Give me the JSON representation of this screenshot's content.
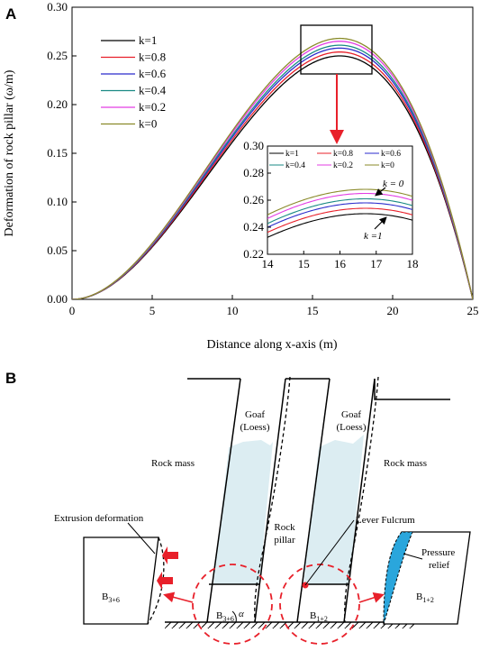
{
  "panels": {
    "a": "A",
    "b": "B"
  },
  "colors": {
    "k1": "#000000",
    "k08": "#e8202a",
    "k06": "#2b2bcc",
    "k04": "#1a8a84",
    "k02": "#e33de3",
    "k0": "#8a8a2a",
    "arrow": "#e8202a",
    "goaf": "#dcedf2",
    "relief": "#2aa6dc"
  },
  "chart_data": {
    "type": "line",
    "title": "",
    "xlabel": "Distance along x-axis (m)",
    "ylabel": "Deformation of rock pillar (ω/m)",
    "xlim": [
      0,
      25
    ],
    "ylim": [
      0,
      0.3
    ],
    "xticks": [
      "0",
      "5",
      "10",
      "15",
      "20",
      "25"
    ],
    "yticks": [
      "0.00",
      "0.05",
      "0.10",
      "0.15",
      "0.20",
      "0.25",
      "0.30"
    ],
    "series": [
      {
        "name": "k=1",
        "peak": 0.25,
        "peak_x": 16.7
      },
      {
        "name": "k=0.8",
        "peak": 0.254,
        "peak_x": 16.7
      },
      {
        "name": "k=0.6",
        "peak": 0.258,
        "peak_x": 16.7
      },
      {
        "name": "k=0.4",
        "peak": 0.261,
        "peak_x": 16.7
      },
      {
        "name": "k=0.2",
        "peak": 0.265,
        "peak_x": 16.7
      },
      {
        "name": "k=0",
        "peak": 0.268,
        "peak_x": 16.7
      }
    ],
    "legend_position": "top-left",
    "inset": {
      "xlim": [
        14,
        18
      ],
      "ylim": [
        0.22,
        0.3
      ],
      "xticks": [
        "14",
        "15",
        "16",
        "17",
        "18"
      ],
      "yticks": [
        "0.22",
        "0.24",
        "0.26",
        "0.28",
        "0.30"
      ],
      "legend": [
        "k=1",
        "k=0.8",
        "k=0.6",
        "k=0.4",
        "k=0.2",
        "k=0"
      ],
      "annotation_top": "k = 0",
      "annotation_bottom": "k =1"
    }
  },
  "diagram": {
    "goaf_left": "Goaf",
    "goaf_left_sub": "(Loess)",
    "goaf_right": "Goaf",
    "goaf_right_sub": "(Loess)",
    "rock_mass_left": "Rock mass",
    "rock_mass_right": "Rock mass",
    "rock_pillar_1": "Rock",
    "rock_pillar_2": "pillar",
    "extrusion": "Extrusion deformation",
    "lever": "Lever Fulcrum",
    "pressure_1": "Pressure",
    "pressure_2": "relief",
    "angle": "α",
    "b36": "B",
    "b36_sub": "3+6",
    "b12": "B",
    "b12_sub": "1+2"
  }
}
